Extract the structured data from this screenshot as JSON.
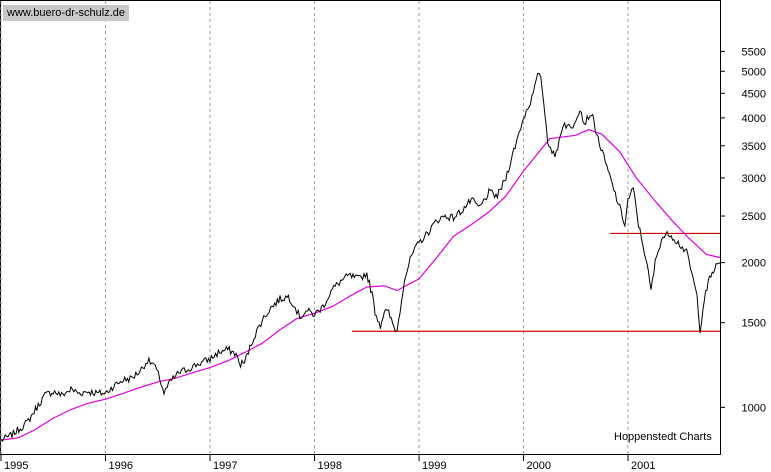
{
  "watermark": "www.buero-dr-schulz.de",
  "source": "Hoppenstedt Charts",
  "colors": {
    "price": "#000000",
    "moving_average": "#e000e0",
    "support": "#e00000",
    "grid": "#a0a0a0",
    "label_bg": "#c8c8c8"
  },
  "chart_data": {
    "type": "line",
    "title": "",
    "xlabel": "",
    "ylabel": "",
    "y_scale": "log",
    "ylim": [
      800,
      7000
    ],
    "x_range": [
      1995.0,
      2001.88
    ],
    "grid": "vertical-dashed-at-year-starts",
    "y_ticks": [
      1000,
      1500,
      2000,
      2500,
      3000,
      3500,
      4000,
      4500,
      5000,
      5500
    ],
    "y_tick_labels": [
      "1000",
      "1500",
      "2000",
      "2500",
      "3000",
      "3500",
      "4000",
      "4500",
      "5000",
      "5500"
    ],
    "x_ticks": [
      1995,
      1996,
      1997,
      1998,
      1999,
      2000,
      2001
    ],
    "x_tick_labels": [
      "1995",
      "1996",
      "1997",
      "1998",
      "1999",
      "2000",
      "2001"
    ],
    "series": [
      {
        "role": "price",
        "points": [
          [
            1995.0,
            855
          ],
          [
            1995.08,
            870
          ],
          [
            1995.17,
            900
          ],
          [
            1995.25,
            930
          ],
          [
            1995.33,
            990
          ],
          [
            1995.42,
            1060
          ],
          [
            1995.5,
            1080
          ],
          [
            1995.58,
            1060
          ],
          [
            1995.67,
            1090
          ],
          [
            1995.75,
            1070
          ],
          [
            1995.83,
            1080
          ],
          [
            1995.92,
            1070
          ],
          [
            1996.0,
            1070
          ],
          [
            1996.08,
            1110
          ],
          [
            1996.17,
            1140
          ],
          [
            1996.25,
            1150
          ],
          [
            1996.33,
            1190
          ],
          [
            1996.4,
            1250
          ],
          [
            1996.46,
            1230
          ],
          [
            1996.52,
            1150
          ],
          [
            1996.56,
            1070
          ],
          [
            1996.62,
            1130
          ],
          [
            1996.7,
            1180
          ],
          [
            1996.78,
            1200
          ],
          [
            1996.88,
            1230
          ],
          [
            1997.0,
            1260
          ],
          [
            1997.08,
            1300
          ],
          [
            1997.17,
            1320
          ],
          [
            1997.25,
            1290
          ],
          [
            1997.28,
            1230
          ],
          [
            1997.33,
            1240
          ],
          [
            1997.42,
            1400
          ],
          [
            1997.5,
            1520
          ],
          [
            1997.58,
            1610
          ],
          [
            1997.67,
            1680
          ],
          [
            1997.75,
            1700
          ],
          [
            1997.8,
            1640
          ],
          [
            1997.86,
            1540
          ],
          [
            1997.92,
            1590
          ],
          [
            1998.0,
            1560
          ],
          [
            1998.08,
            1620
          ],
          [
            1998.17,
            1760
          ],
          [
            1998.25,
            1830
          ],
          [
            1998.33,
            1880
          ],
          [
            1998.42,
            1850
          ],
          [
            1998.5,
            1900
          ],
          [
            1998.55,
            1720
          ],
          [
            1998.58,
            1580
          ],
          [
            1998.63,
            1480
          ],
          [
            1998.67,
            1590
          ],
          [
            1998.71,
            1570
          ],
          [
            1998.76,
            1470
          ],
          [
            1998.79,
            1440
          ],
          [
            1998.86,
            1850
          ],
          [
            1998.93,
            2070
          ],
          [
            1999.0,
            2200
          ],
          [
            1999.08,
            2300
          ],
          [
            1999.17,
            2450
          ],
          [
            1999.25,
            2500
          ],
          [
            1999.33,
            2480
          ],
          [
            1999.42,
            2580
          ],
          [
            1999.5,
            2700
          ],
          [
            1999.58,
            2600
          ],
          [
            1999.67,
            2800
          ],
          [
            1999.75,
            2750
          ],
          [
            1999.83,
            3000
          ],
          [
            1999.92,
            3500
          ],
          [
            2000.0,
            4000
          ],
          [
            2000.08,
            4400
          ],
          [
            2000.15,
            5000
          ],
          [
            2000.18,
            4600
          ],
          [
            2000.23,
            3600
          ],
          [
            2000.3,
            3300
          ],
          [
            2000.38,
            3900
          ],
          [
            2000.46,
            3800
          ],
          [
            2000.54,
            4200
          ],
          [
            2000.58,
            3900
          ],
          [
            2000.65,
            4100
          ],
          [
            2000.7,
            3700
          ],
          [
            2000.77,
            3300
          ],
          [
            2000.85,
            2900
          ],
          [
            2000.92,
            2600
          ],
          [
            2000.97,
            2400
          ],
          [
            2001.0,
            2700
          ],
          [
            2001.05,
            2850
          ],
          [
            2001.1,
            2400
          ],
          [
            2001.17,
            2050
          ],
          [
            2001.22,
            1750
          ],
          [
            2001.26,
            2000
          ],
          [
            2001.32,
            2250
          ],
          [
            2001.4,
            2300
          ],
          [
            2001.48,
            2200
          ],
          [
            2001.56,
            2100
          ],
          [
            2001.61,
            1900
          ],
          [
            2001.66,
            1700
          ],
          [
            2001.69,
            1450
          ],
          [
            2001.73,
            1680
          ],
          [
            2001.78,
            1850
          ],
          [
            2001.83,
            1950
          ],
          [
            2001.88,
            2000
          ]
        ]
      },
      {
        "role": "moving-average",
        "points": [
          [
            1995.0,
            855
          ],
          [
            1995.17,
            865
          ],
          [
            1995.33,
            900
          ],
          [
            1995.5,
            950
          ],
          [
            1995.67,
            990
          ],
          [
            1995.83,
            1020
          ],
          [
            1996.0,
            1040
          ],
          [
            1996.17,
            1070
          ],
          [
            1996.33,
            1100
          ],
          [
            1996.5,
            1130
          ],
          [
            1996.67,
            1150
          ],
          [
            1996.83,
            1180
          ],
          [
            1997.0,
            1210
          ],
          [
            1997.17,
            1250
          ],
          [
            1997.33,
            1300
          ],
          [
            1997.5,
            1360
          ],
          [
            1997.67,
            1450
          ],
          [
            1997.83,
            1530
          ],
          [
            1998.0,
            1570
          ],
          [
            1998.17,
            1620
          ],
          [
            1998.33,
            1700
          ],
          [
            1998.5,
            1780
          ],
          [
            1998.67,
            1790
          ],
          [
            1998.79,
            1750
          ],
          [
            1999.0,
            1850
          ],
          [
            1999.17,
            2050
          ],
          [
            1999.33,
            2270
          ],
          [
            1999.5,
            2400
          ],
          [
            1999.67,
            2550
          ],
          [
            1999.83,
            2750
          ],
          [
            2000.0,
            3100
          ],
          [
            2000.25,
            3620
          ],
          [
            2000.5,
            3680
          ],
          [
            2000.62,
            3780
          ],
          [
            2000.75,
            3700
          ],
          [
            2000.92,
            3400
          ],
          [
            2001.08,
            3000
          ],
          [
            2001.25,
            2700
          ],
          [
            2001.42,
            2450
          ],
          [
            2001.58,
            2250
          ],
          [
            2001.75,
            2080
          ],
          [
            2001.88,
            2050
          ]
        ]
      }
    ],
    "horizontal_lines": [
      {
        "role": "upper-resistance",
        "y": 2300,
        "x_from": 2000.83,
        "x_to": 2001.88
      },
      {
        "role": "lower-support",
        "y": 1440,
        "x_from": 1998.36,
        "x_to": 2001.88
      }
    ]
  }
}
